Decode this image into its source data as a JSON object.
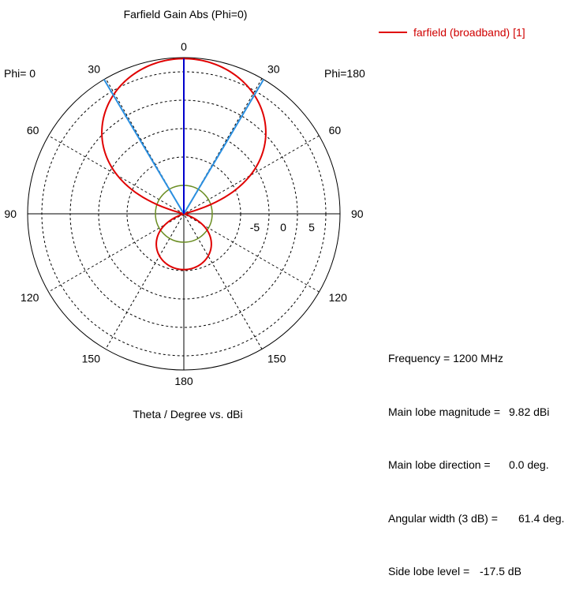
{
  "chart_data": {
    "type": "polar",
    "title": "Farfield Gain Abs (Phi=0)",
    "xlabel": "Theta / Degree vs. dBi",
    "phi_left_label": "Phi=  0",
    "phi_right_label": "Phi=180",
    "angle_labels": [
      "0",
      "30",
      "60",
      "90",
      "120",
      "150",
      "180",
      "150",
      "120",
      "90",
      "60",
      "30"
    ],
    "angle_positions_deg": [
      0,
      30,
      60,
      90,
      120,
      150,
      180,
      210,
      240,
      270,
      300,
      330
    ],
    "radial_ticks": [
      -5,
      0,
      5
    ],
    "radial_tick_labels": [
      "-5",
      "0",
      "5"
    ],
    "radial_range_dBi": [
      -17.5,
      10
    ],
    "radial_rings_dBi": [
      -12.5,
      -7.5,
      -2.5,
      2.5,
      7.5
    ],
    "reference_ring_dBi": -12.5,
    "series": [
      {
        "name": "farfield (broadband) [1]",
        "color": "#e00000",
        "main_lobe_gain_dBi": 9.82,
        "beamwidth_deg": 61.4,
        "side_lobe_level_dB": -17.5
      }
    ],
    "main_lobe_direction_deg": 0,
    "beamwidth_lines_deg": [
      -30.7,
      30.7
    ],
    "colors": {
      "main_lobe_line": "#0000cc",
      "beamwidth_lines": "#2b8fe0",
      "reference_ring": "#6b8e23",
      "grid": "#000000"
    }
  },
  "legend": {
    "label": "farfield (broadband) [1]"
  },
  "info": {
    "frequency": "Frequency = 1200 MHz",
    "magnitude_label": "Main lobe magnitude =",
    "magnitude_value": "9.82 dBi",
    "direction_label": "Main lobe direction =",
    "direction_value": "0.0 deg.",
    "width_label": "Angular width (3 dB) =",
    "width_value": "61.4 deg.",
    "sidelobe_label": "Side lobe level =",
    "sidelobe_value": "-17.5 dB"
  }
}
